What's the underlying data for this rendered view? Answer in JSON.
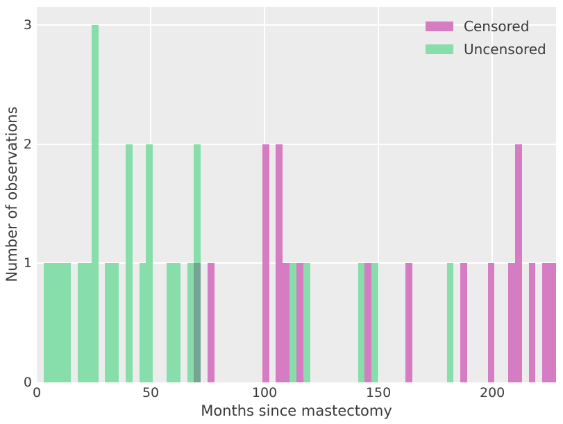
{
  "chart_data": {
    "type": "bar",
    "subtype": "histogram",
    "title": "",
    "xlabel": "Months since mastectomy",
    "ylabel": "Number of observations",
    "xlim": [
      0,
      228
    ],
    "ylim": [
      0,
      3.15
    ],
    "xticks": [
      "0",
      "50",
      "100",
      "150",
      "200"
    ],
    "xtick_values": [
      0,
      50,
      100,
      150,
      200
    ],
    "yticks": [
      "0",
      "1",
      "2",
      "3"
    ],
    "ytick_values": [
      0,
      1,
      2,
      3
    ],
    "bin_width_months": 3,
    "grid": "on",
    "legend_position": "upper right",
    "panel_background": "#ECECEC",
    "grid_color": "#FFFFFF",
    "text_color": "#3A3A3A",
    "overlap_color": "#76A392",
    "series": [
      {
        "name": "Censored",
        "color": "#D67CC2",
        "bins": [
          {
            "start": 69,
            "count": 1,
            "overlap": true
          },
          {
            "start": 75,
            "count": 1
          },
          {
            "start": 99,
            "count": 2
          },
          {
            "start": 105,
            "count": 2
          },
          {
            "start": 108,
            "count": 1
          },
          {
            "start": 114,
            "count": 1
          },
          {
            "start": 144,
            "count": 1
          },
          {
            "start": 162,
            "count": 1
          },
          {
            "start": 186,
            "count": 1
          },
          {
            "start": 198,
            "count": 1
          },
          {
            "start": 207,
            "count": 1
          },
          {
            "start": 210,
            "count": 2
          },
          {
            "start": 216,
            "count": 1
          },
          {
            "start": 222,
            "count": 1
          },
          {
            "start": 225,
            "count": 1
          }
        ]
      },
      {
        "name": "Uncensored",
        "color": "#87DEAA",
        "bins": [
          {
            "start": 3,
            "count": 1
          },
          {
            "start": 6,
            "count": 1
          },
          {
            "start": 9,
            "count": 1
          },
          {
            "start": 12,
            "count": 1
          },
          {
            "start": 18,
            "count": 1
          },
          {
            "start": 21,
            "count": 1
          },
          {
            "start": 24,
            "count": 3
          },
          {
            "start": 30,
            "count": 1
          },
          {
            "start": 33,
            "count": 1
          },
          {
            "start": 39,
            "count": 2
          },
          {
            "start": 45,
            "count": 1
          },
          {
            "start": 48,
            "count": 2
          },
          {
            "start": 57,
            "count": 1
          },
          {
            "start": 60,
            "count": 1
          },
          {
            "start": 66,
            "count": 1
          },
          {
            "start": 69,
            "count": 2
          },
          {
            "start": 111,
            "count": 1
          },
          {
            "start": 117,
            "count": 1
          },
          {
            "start": 141,
            "count": 1
          },
          {
            "start": 147,
            "count": 1
          },
          {
            "start": 180,
            "count": 1
          }
        ]
      }
    ],
    "legend": [
      {
        "label": "Censored",
        "color": "#D67CC2"
      },
      {
        "label": "Uncensored",
        "color": "#87DEAA"
      }
    ]
  }
}
